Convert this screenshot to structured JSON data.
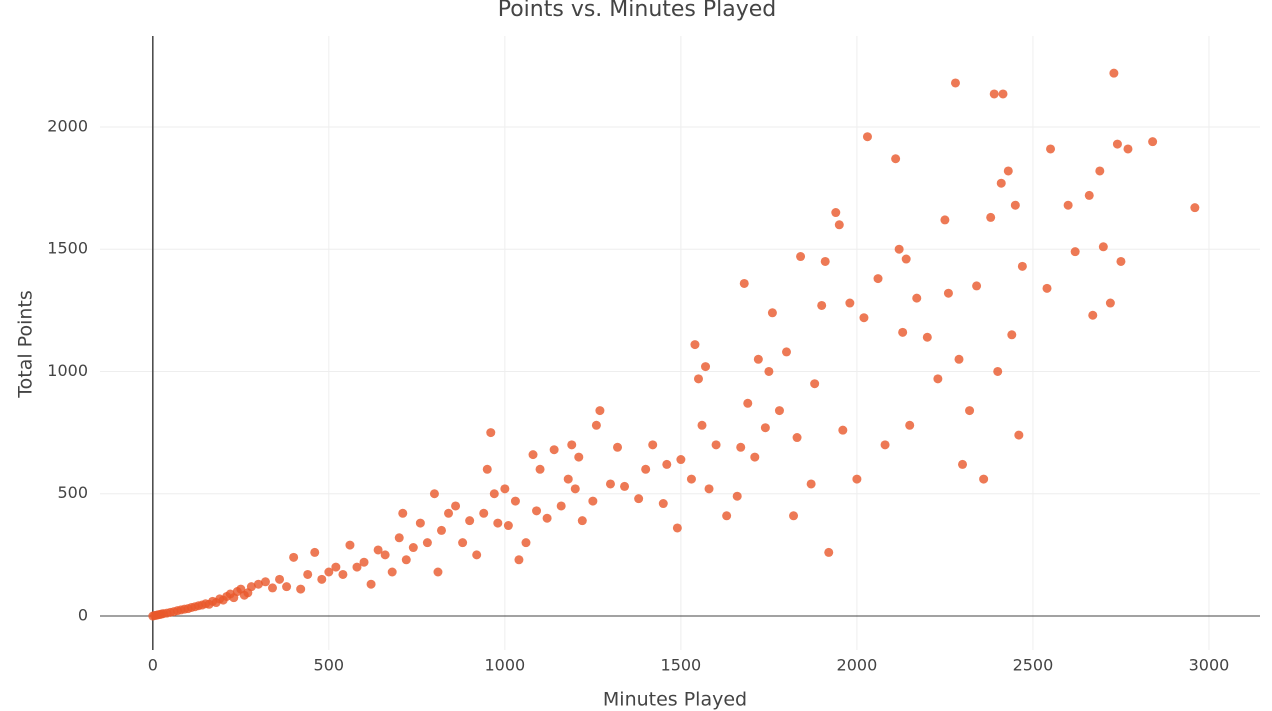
{
  "chart_data": {
    "type": "scatter",
    "title": "Points vs. Minutes Played",
    "x_label": "Minutes Played",
    "y_label": "Total Points",
    "color": "#e8582a",
    "grid": true,
    "x": [
      0,
      5,
      10,
      15,
      20,
      25,
      30,
      40,
      50,
      60,
      70,
      80,
      90,
      100,
      110,
      120,
      130,
      140,
      150,
      160,
      170,
      180,
      190,
      200,
      210,
      220,
      230,
      240,
      250,
      260,
      270,
      280,
      300,
      320,
      340,
      360,
      380,
      400,
      420,
      440,
      460,
      480,
      500,
      520,
      540,
      560,
      580,
      600,
      620,
      640,
      660,
      680,
      700,
      710,
      720,
      740,
      760,
      780,
      800,
      810,
      820,
      840,
      860,
      880,
      900,
      920,
      940,
      950,
      960,
      970,
      980,
      1000,
      1010,
      1030,
      1040,
      1060,
      1080,
      1090,
      1100,
      1120,
      1140,
      1160,
      1180,
      1190,
      1200,
      1210,
      1220,
      1250,
      1260,
      1270,
      1300,
      1320,
      1340,
      1380,
      1400,
      1420,
      1450,
      1460,
      1490,
      1500,
      1530,
      1540,
      1550,
      1560,
      1570,
      1580,
      1600,
      1630,
      1660,
      1670,
      1680,
      1690,
      1710,
      1720,
      1740,
      1750,
      1760,
      1780,
      1800,
      1820,
      1830,
      1840,
      1870,
      1880,
      1900,
      1910,
      1920,
      1940,
      1950,
      1960,
      1980,
      2000,
      2020,
      2030,
      2060,
      2080,
      2110,
      2120,
      2130,
      2140,
      2150,
      2170,
      2200,
      2230,
      2250,
      2260,
      2280,
      2290,
      2300,
      2320,
      2340,
      2360,
      2380,
      2390,
      2400,
      2410,
      2415,
      2430,
      2440,
      2450,
      2460,
      2470,
      2540,
      2550,
      2600,
      2620,
      2660,
      2670,
      2690,
      2700,
      2720,
      2730,
      2740,
      2750,
      2770,
      2840,
      2960
    ],
    "values": [
      0,
      2,
      3,
      5,
      6,
      8,
      10,
      12,
      15,
      18,
      22,
      25,
      28,
      30,
      35,
      38,
      42,
      45,
      50,
      48,
      60,
      55,
      70,
      65,
      80,
      90,
      75,
      100,
      110,
      85,
      95,
      120,
      130,
      140,
      115,
      150,
      120,
      240,
      110,
      170,
      260,
      150,
      180,
      200,
      170,
      290,
      200,
      220,
      130,
      270,
      250,
      180,
      320,
      420,
      230,
      280,
      380,
      300,
      500,
      180,
      350,
      420,
      450,
      300,
      390,
      250,
      420,
      600,
      750,
      500,
      380,
      520,
      370,
      470,
      230,
      300,
      660,
      430,
      600,
      400,
      680,
      450,
      560,
      700,
      520,
      650,
      390,
      470,
      780,
      840,
      540,
      690,
      530,
      480,
      600,
      700,
      460,
      620,
      360,
      640,
      560,
      1110,
      970,
      780,
      1020,
      520,
      700,
      410,
      490,
      690,
      1360,
      870,
      650,
      1050,
      770,
      1000,
      1240,
      840,
      1080,
      410,
      730,
      1470,
      540,
      950,
      1270,
      1450,
      260,
      1650,
      1600,
      760,
      1280,
      560,
      1220,
      1960,
      1380,
      700,
      1870,
      1500,
      1160,
      1460,
      780,
      1300,
      1140,
      970,
      1620,
      1320,
      2180,
      1050,
      620,
      840,
      1350,
      560,
      1630,
      2135,
      1000,
      1770,
      2135,
      1820,
      1150,
      1680,
      740,
      1430,
      1340,
      1910,
      1680,
      1490,
      1720,
      1230,
      1820,
      1510,
      1280,
      2220,
      1930,
      1450,
      1910,
      1940,
      1670
    ],
    "xlim": [
      -150,
      3145
    ],
    "ylim": [
      -139,
      2372
    ],
    "xticks": [
      0,
      500,
      1000,
      1500,
      2000,
      2500,
      3000
    ],
    "yticks": [
      0,
      500,
      1000,
      1500,
      2000
    ]
  }
}
